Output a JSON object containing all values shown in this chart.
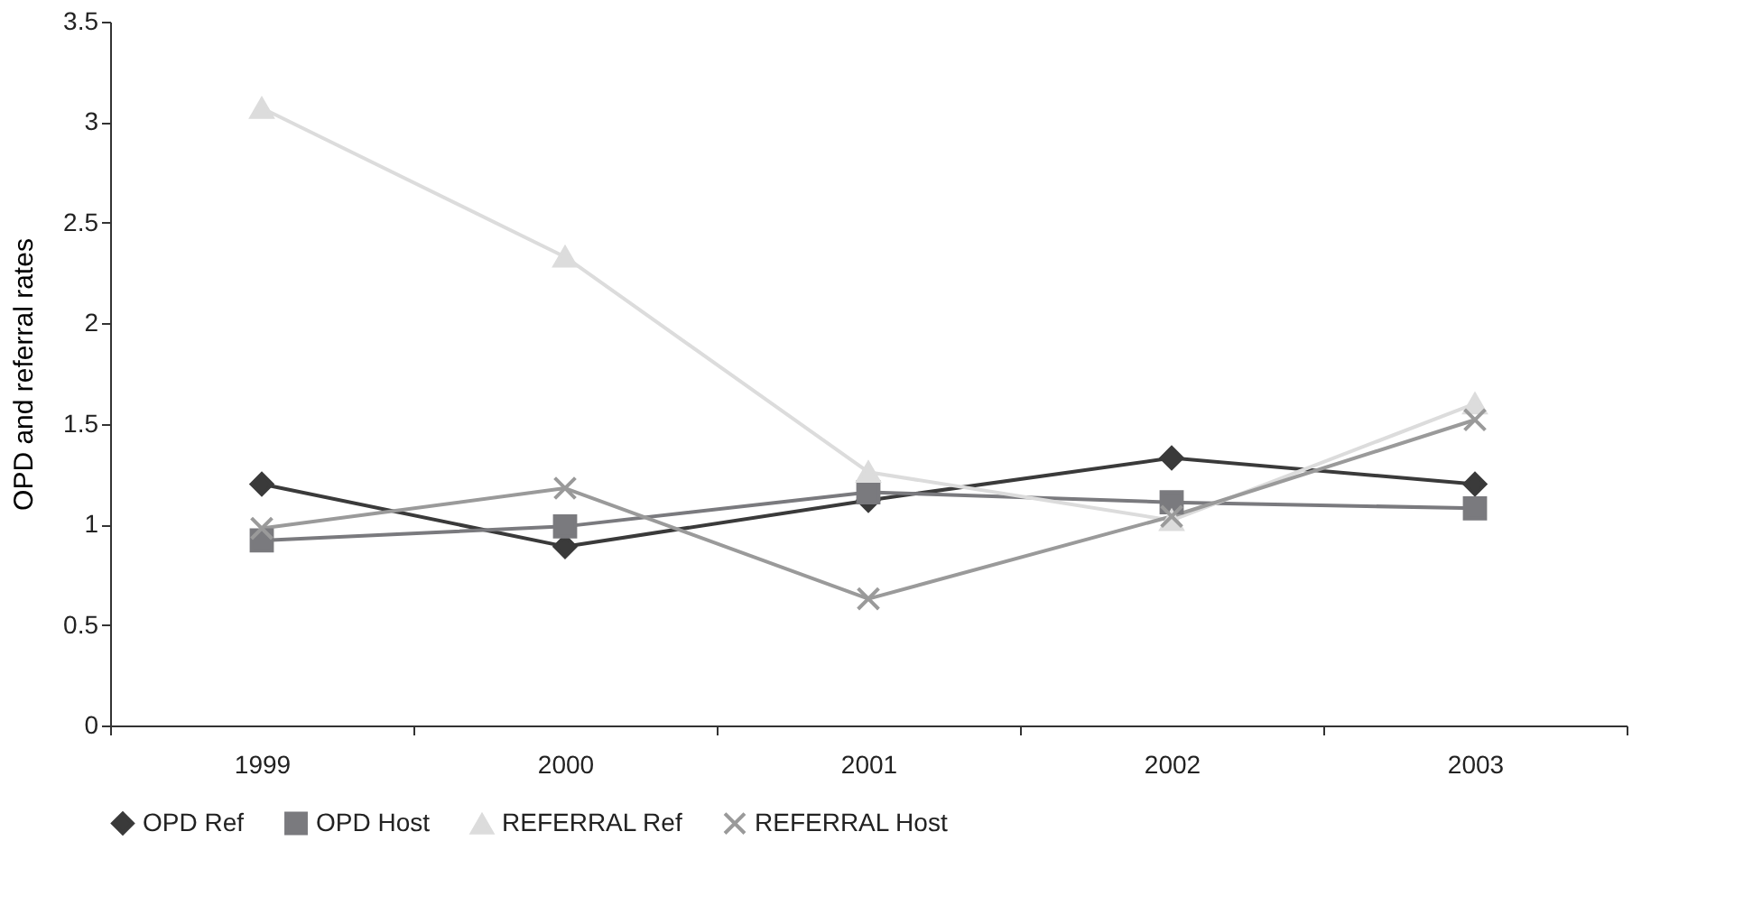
{
  "chart_data": {
    "type": "line",
    "ylabel": "OPD and referral rates",
    "categories": [
      "1999",
      "2000",
      "2001",
      "2002",
      "2003"
    ],
    "ylim": [
      0,
      3.5
    ],
    "yticks": [
      0,
      0.5,
      1,
      1.5,
      2,
      2.5,
      3,
      3.5
    ],
    "grid": false,
    "legend": "bottom",
    "line_style": "solid",
    "series": [
      {
        "name": "OPD Ref",
        "color": "#3a3a3a",
        "marker": "diamond",
        "values": [
          1.2,
          0.89,
          1.12,
          1.33,
          1.2
        ]
      },
      {
        "name": "OPD Host",
        "color": "#7a7a7e",
        "marker": "square",
        "values": [
          0.92,
          0.99,
          1.16,
          1.11,
          1.08
        ]
      },
      {
        "name": "REFERRAL Ref",
        "color": "#dcdcdc",
        "marker": "triangle",
        "values": [
          3.07,
          2.33,
          1.26,
          1.02,
          1.6
        ]
      },
      {
        "name": "REFERRAL Host",
        "color": "#9a9a9a",
        "marker": "cross",
        "values": [
          0.98,
          1.18,
          0.63,
          1.04,
          1.52
        ]
      }
    ]
  }
}
